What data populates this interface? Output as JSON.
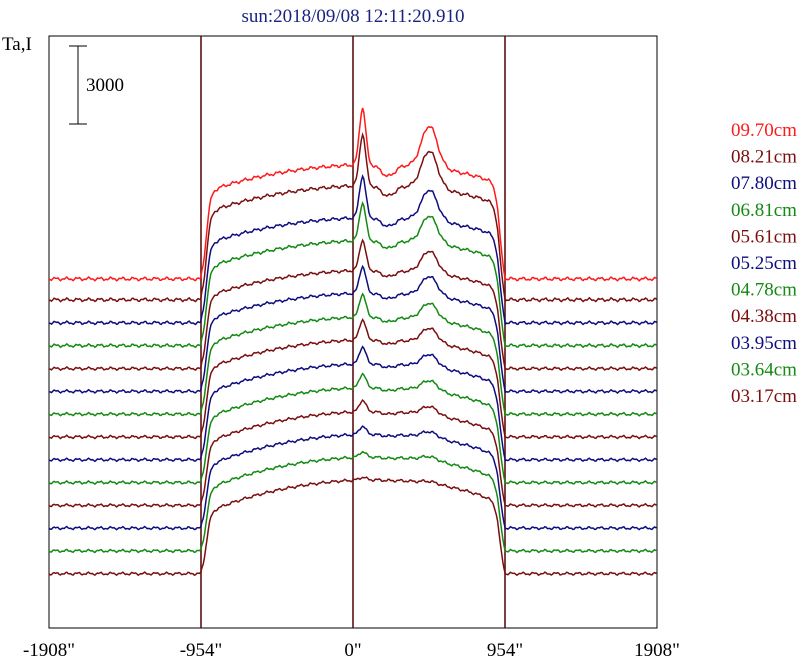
{
  "title": "sun:2018/09/08 12:11:20.910",
  "chart_data": {
    "type": "line",
    "title": "sun:2018/09/08 12:11:20.910",
    "ylabel": "Ta,I",
    "xlabel": "",
    "x_ticks": [
      "-1908\"",
      "-954\"",
      "0\"",
      "954\"",
      "1908\""
    ],
    "x_tick_values": [
      -1908,
      -954,
      0,
      954,
      1908
    ],
    "xlim": [
      -1908,
      1908
    ],
    "vertical_lines": [
      -954,
      0,
      954
    ],
    "scale_bar": {
      "value": 3000,
      "label": "3000"
    },
    "colors": {
      "red": "#ff1a1a",
      "maroon": "#7a0f0f",
      "navy": "#0d0d80",
      "green": "#138a13"
    },
    "series": [
      {
        "name": "09.70cm",
        "color": "#ff1a1a",
        "base": 0,
        "amp": 10000,
        "limb_peak": 1.0,
        "step": 0.22
      },
      {
        "name": "08.21cm",
        "color": "#7a0f0f",
        "base": -1100,
        "amp": 10000,
        "limb_peak": 0.9,
        "step": 0.22
      },
      {
        "name": "07.80cm",
        "color": "#0d0d80",
        "base": -2300,
        "amp": 9200,
        "limb_peak": 0.8,
        "step": 0.2
      },
      {
        "name": "06.81cm",
        "color": "#138a13",
        "base": -3500,
        "amp": 9200,
        "limb_peak": 0.72,
        "step": 0.18
      },
      {
        "name": "05.61cm",
        "color": "#7a0f0f",
        "base": -4700,
        "amp": 8600,
        "limb_peak": 0.62,
        "step": 0.17
      },
      {
        "name": "05.25cm",
        "color": "#0d0d80",
        "base": -5900,
        "amp": 8600,
        "limb_peak": 0.55,
        "step": 0.16
      },
      {
        "name": "04.78cm",
        "color": "#138a13",
        "base": -7100,
        "amp": 8500,
        "limb_peak": 0.48,
        "step": 0.14
      },
      {
        "name": "04.38cm",
        "color": "#7a0f0f",
        "base": -8300,
        "amp": 8500,
        "limb_peak": 0.42,
        "step": 0.12
      },
      {
        "name": "03.95cm",
        "color": "#0d0d80",
        "base": -9500,
        "amp": 8400,
        "limb_peak": 0.36,
        "step": 0.1
      },
      {
        "name": "03.64cm",
        "color": "#138a13",
        "base": -10700,
        "amp": 8300,
        "limb_peak": 0.3,
        "step": 0.08
      },
      {
        "name": "03.17cm",
        "color": "#7a0f0f",
        "base": -11900,
        "amp": 8200,
        "limb_peak": 0.25,
        "step": 0.06
      },
      {
        "name": "",
        "color": "#0d0d80",
        "base": -13100,
        "amp": 8200,
        "limb_peak": 0.18,
        "step": 0.05
      },
      {
        "name": "",
        "color": "#138a13",
        "base": -14300,
        "amp": 8200,
        "limb_peak": 0.12,
        "step": 0.04
      },
      {
        "name": "",
        "color": "#7a0f0f",
        "base": -15500,
        "amp": 8200,
        "limb_peak": 0.06,
        "step": 0.03
      }
    ],
    "legend": [
      {
        "label": "09.70cm",
        "color": "#ff1a1a"
      },
      {
        "label": "08.21cm",
        "color": "#7a0f0f"
      },
      {
        "label": "07.80cm",
        "color": "#0d0d80"
      },
      {
        "label": "06.81cm",
        "color": "#138a13"
      },
      {
        "label": "05.61cm",
        "color": "#7a0f0f"
      },
      {
        "label": "05.25cm",
        "color": "#0d0d80"
      },
      {
        "label": "04.78cm",
        "color": "#138a13"
      },
      {
        "label": "04.38cm",
        "color": "#7a0f0f"
      },
      {
        "label": "03.95cm",
        "color": "#0d0d80"
      },
      {
        "label": "03.64cm",
        "color": "#138a13"
      },
      {
        "label": "03.17cm",
        "color": "#7a0f0f"
      }
    ],
    "legend_placement": "right",
    "grid": false
  }
}
